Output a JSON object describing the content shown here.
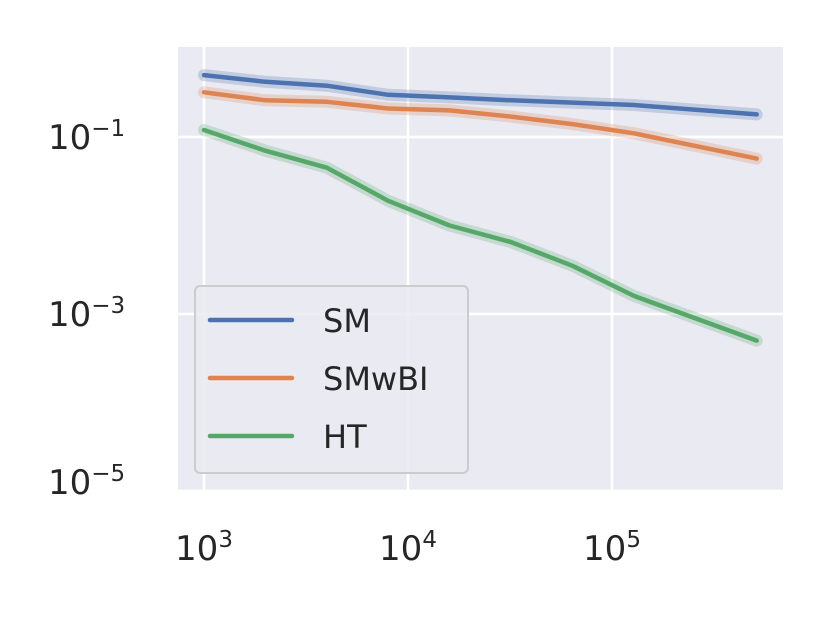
{
  "chart_data": {
    "type": "line",
    "title": "",
    "xlabel": "",
    "ylabel": "",
    "xscale": "log",
    "yscale": "log",
    "xlim": [
      800,
      700000
    ],
    "ylim": [
      1e-05,
      1
    ],
    "grid": true,
    "legend_position": "lower-left",
    "x_ticks": [
      {
        "base": "10",
        "exp": "3",
        "value": 1000
      },
      {
        "base": "10",
        "exp": "4",
        "value": 10000
      },
      {
        "base": "10",
        "exp": "5",
        "value": 100000
      }
    ],
    "y_ticks": [
      {
        "base": "10",
        "exp": "−1",
        "value": 0.1
      },
      {
        "base": "10",
        "exp": "−3",
        "value": 0.001
      },
      {
        "base": "10",
        "exp": "−5",
        "value": 1e-05
      }
    ],
    "x": [
      1000,
      2000,
      4000,
      8000,
      16000,
      32000,
      64000,
      128000,
      512000
    ],
    "series": [
      {
        "name": "SM",
        "color": "#4c72b0",
        "values": [
          0.5,
          0.42,
          0.38,
          0.3,
          0.28,
          0.26,
          0.245,
          0.23,
          0.18
        ]
      },
      {
        "name": "SMwBI",
        "color": "#dd8452",
        "values": [
          0.32,
          0.26,
          0.25,
          0.21,
          0.2,
          0.17,
          0.14,
          0.11,
          0.057
        ]
      },
      {
        "name": "HT",
        "color": "#55a868",
        "values": [
          0.12,
          0.07,
          0.045,
          0.019,
          0.01,
          0.0065,
          0.0035,
          0.0016,
          0.0005
        ]
      }
    ]
  },
  "style": {
    "plot_background": "#eaeaf2",
    "grid_color": "#ffffff",
    "legend_background": "#eaeaf2",
    "legend_border": "#cccccc"
  }
}
